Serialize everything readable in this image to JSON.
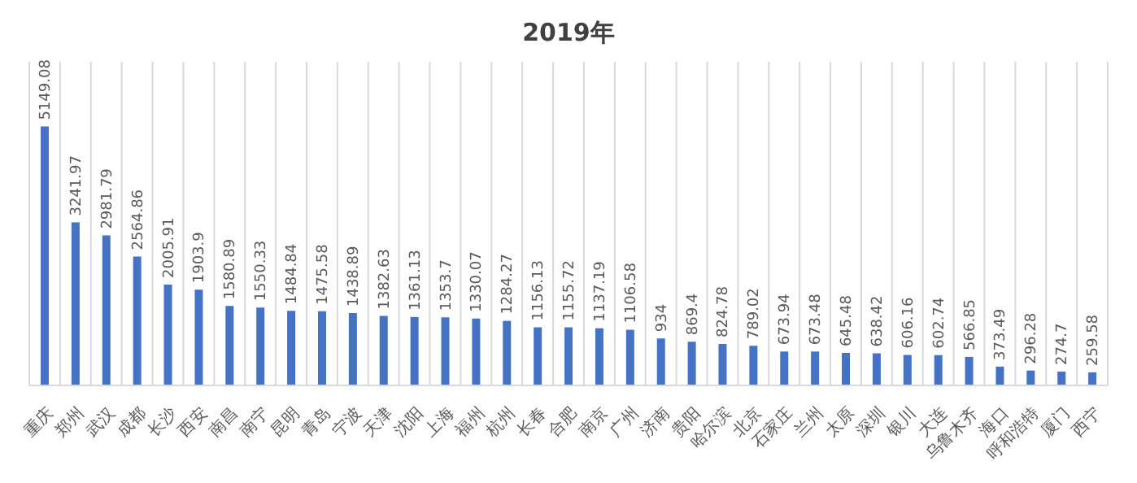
{
  "chart_data": {
    "type": "bar",
    "title": "2019年",
    "categories": [
      "重庆",
      "郑州",
      "武汉",
      "成都",
      "长沙",
      "西安",
      "南昌",
      "南宁",
      "昆明",
      "青岛",
      "宁波",
      "天津",
      "沈阳",
      "上海",
      "福州",
      "杭州",
      "长春",
      "合肥",
      "南京",
      "广州",
      "济南",
      "贵阳",
      "哈尔滨",
      "北京",
      "石家庄",
      "兰州",
      "太原",
      "深圳",
      "银川",
      "大连",
      "乌鲁木齐",
      "海口",
      "呼和浩特",
      "厦门",
      "西宁"
    ],
    "values": [
      5149.08,
      3241.97,
      2981.79,
      2564.86,
      2005.91,
      1903.9,
      1580.89,
      1550.33,
      1484.84,
      1475.58,
      1438.89,
      1382.63,
      1361.13,
      1353.7,
      1330.07,
      1284.27,
      1156.13,
      1155.72,
      1137.19,
      1106.58,
      934,
      869.4,
      824.78,
      789.02,
      673.94,
      673.48,
      645.48,
      638.42,
      606.16,
      602.74,
      566.85,
      373.49,
      296.28,
      274.7,
      259.58
    ],
    "color": "#4472c4",
    "data_labels": true,
    "grid": "x"
  }
}
